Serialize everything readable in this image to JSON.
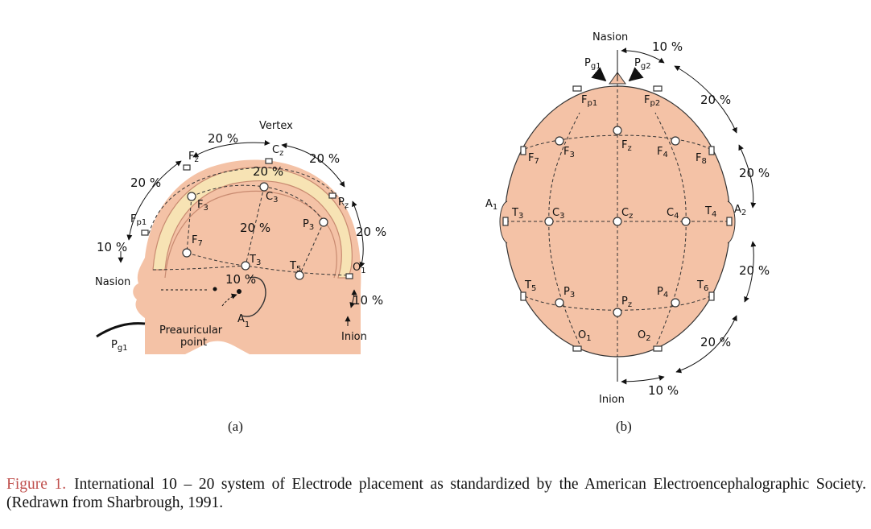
{
  "panel_a": {
    "sub_label": "(a)",
    "landmarks": {
      "vertex": "Vertex",
      "nasion": "Nasion",
      "inion": "Inion",
      "preauricular": [
        "Preauricular",
        "point"
      ]
    },
    "electrodes": {
      "pg1": [
        "P",
        "g1"
      ],
      "fp1": [
        "F",
        "p1"
      ],
      "fz": [
        "F",
        "z"
      ],
      "cz": [
        "C",
        "z"
      ],
      "pz": [
        "P",
        "z"
      ],
      "f3": [
        "F",
        "3"
      ],
      "c3": [
        "C",
        "3"
      ],
      "p3": [
        "P",
        "3"
      ],
      "f7": [
        "F",
        "7"
      ],
      "t3": [
        "T",
        "3"
      ],
      "t5": [
        "T",
        "5"
      ],
      "o1": [
        "O",
        "1"
      ],
      "a1": [
        "A",
        "1"
      ]
    },
    "percent": {
      "p20": "20 %",
      "p10": "10 %",
      "p10b": "10 %"
    }
  },
  "panel_b": {
    "sub_label": "(b)",
    "landmarks": {
      "nasion": "Nasion",
      "inion": "Inion"
    },
    "electrodes": {
      "pg1": [
        "P",
        "g1"
      ],
      "pg2": [
        "P",
        "g2"
      ],
      "fp1": [
        "F",
        "p1"
      ],
      "fp2": [
        "F",
        "p2"
      ],
      "f7": [
        "F",
        "7"
      ],
      "f3": [
        "F",
        "3"
      ],
      "fz": [
        "F",
        "z"
      ],
      "f4": [
        "F",
        "4"
      ],
      "f8": [
        "F",
        "8"
      ],
      "a1": [
        "A",
        "1"
      ],
      "t3": [
        "T",
        "3"
      ],
      "c3": [
        "C",
        "3"
      ],
      "cz": [
        "C",
        "z"
      ],
      "c4": [
        "C",
        "4"
      ],
      "t4": [
        "T",
        "4"
      ],
      "a2": [
        "A",
        "2"
      ],
      "t5": [
        "T",
        "5"
      ],
      "p3": [
        "P",
        "3"
      ],
      "pz": [
        "P",
        "z"
      ],
      "p4": [
        "P",
        "4"
      ],
      "t6": [
        "T",
        "6"
      ],
      "o1": [
        "O",
        "1"
      ],
      "o2": [
        "O",
        "2"
      ]
    },
    "percent": {
      "p10": "10 %",
      "p20": "20 %"
    }
  },
  "caption": {
    "label": "Figure 1.",
    "text": "International 10 – 20 system of Electrode placement as standardized by the American Electroencephalographic Society. (Redrawn from Sharbrough, 1991."
  }
}
